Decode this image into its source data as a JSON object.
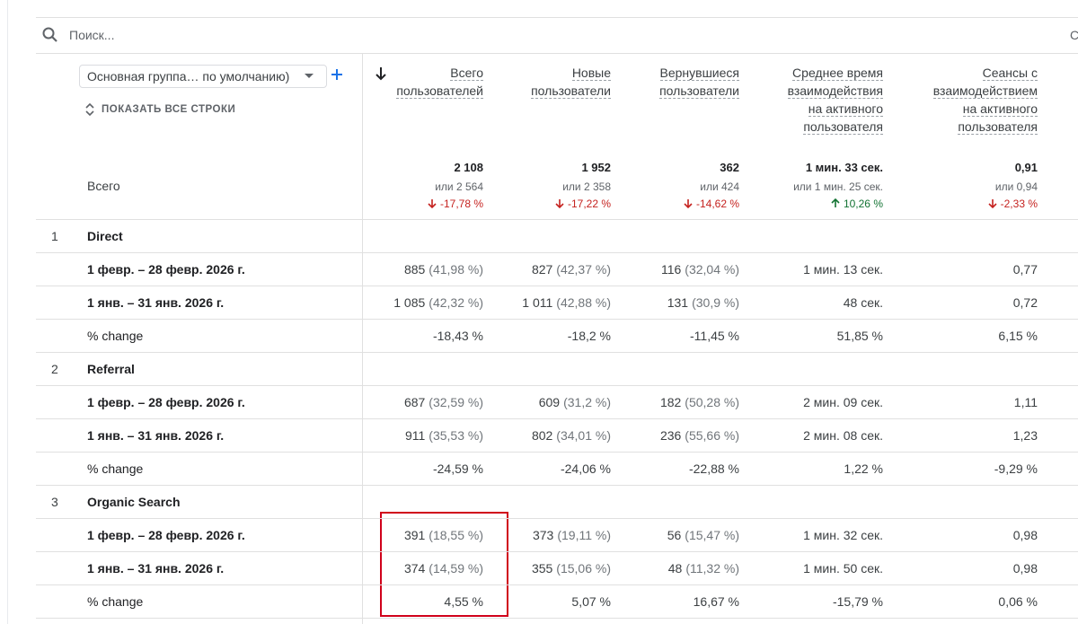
{
  "search": {
    "placeholder": "Поиск...",
    "right_text": "С"
  },
  "dimension_select": "Основная группа… по умолчанию)",
  "show_all_rows": "ПОКАЗАТЬ ВСЕ СТРОКИ",
  "columns": [
    "Всего пользователей",
    "Новые пользователи",
    "Вернувшиеся пользователи",
    "Среднее время взаимодействия на активного пользователя",
    "Сеансы с взаимодействием на активного пользователя"
  ],
  "totals": {
    "label": "Всего",
    "cells": [
      {
        "value": "2 108",
        "compare": "или 2 564",
        "change": "-17,78 %",
        "direction": "down"
      },
      {
        "value": "1 952",
        "compare": "или 2 358",
        "change": "-17,22 %",
        "direction": "down"
      },
      {
        "value": "362",
        "compare": "или 424",
        "change": "-14,62 %",
        "direction": "down"
      },
      {
        "value": "1 мин. 33 сек.",
        "compare": "или 1 мин. 25 сек.",
        "change": "10,26 %",
        "direction": "up"
      },
      {
        "value": "0,91",
        "compare": "или 0,94",
        "change": "-2,33 %",
        "direction": "down"
      }
    ]
  },
  "groups": [
    {
      "index": "1",
      "name": "Direct",
      "rows": [
        {
          "label": "1 февр. – 28 февр. 2026 г.",
          "cells": [
            {
              "value": "885",
              "share": "(41,98 %)"
            },
            {
              "value": "827",
              "share": "(42,37 %)"
            },
            {
              "value": "116",
              "share": "(32,04 %)"
            },
            {
              "value": "1 мин. 13 сек."
            },
            {
              "value": "0,77"
            }
          ]
        },
        {
          "label": "1 янв. – 31 янв. 2026 г.",
          "cells": [
            {
              "value": "1 085",
              "share": "(42,32 %)"
            },
            {
              "value": "1 011",
              "share": "(42,88 %)"
            },
            {
              "value": "131",
              "share": "(30,9 %)"
            },
            {
              "value": "48 сек."
            },
            {
              "value": "0,72"
            }
          ]
        },
        {
          "label": "% change",
          "cells": [
            {
              "value": "-18,43 %"
            },
            {
              "value": "-18,2 %"
            },
            {
              "value": "-11,45 %"
            },
            {
              "value": "51,85 %"
            },
            {
              "value": "6,15 %"
            }
          ]
        }
      ]
    },
    {
      "index": "2",
      "name": "Referral",
      "rows": [
        {
          "label": "1 февр. – 28 февр. 2026 г.",
          "cells": [
            {
              "value": "687",
              "share": "(32,59 %)"
            },
            {
              "value": "609",
              "share": "(31,2 %)"
            },
            {
              "value": "182",
              "share": "(50,28 %)"
            },
            {
              "value": "2 мин. 09 сек."
            },
            {
              "value": "1,11"
            }
          ]
        },
        {
          "label": "1 янв. – 31 янв. 2026 г.",
          "cells": [
            {
              "value": "911",
              "share": "(35,53 %)"
            },
            {
              "value": "802",
              "share": "(34,01 %)"
            },
            {
              "value": "236",
              "share": "(55,66 %)"
            },
            {
              "value": "2 мин. 08 сек."
            },
            {
              "value": "1,23"
            }
          ]
        },
        {
          "label": "% change",
          "cells": [
            {
              "value": "-24,59 %"
            },
            {
              "value": "-24,06 %"
            },
            {
              "value": "-22,88 %"
            },
            {
              "value": "1,22 %"
            },
            {
              "value": "-9,29 %"
            }
          ]
        }
      ]
    },
    {
      "index": "3",
      "name": "Organic Search",
      "rows": [
        {
          "label": "1 февр. – 28 февр. 2026 г.",
          "cells": [
            {
              "value": "391",
              "share": "(18,55 %)"
            },
            {
              "value": "373",
              "share": "(19,11 %)"
            },
            {
              "value": "56",
              "share": "(15,47 %)"
            },
            {
              "value": "1 мин. 32 сек."
            },
            {
              "value": "0,98"
            }
          ]
        },
        {
          "label": "1 янв. – 31 янв. 2026 г.",
          "cells": [
            {
              "value": "374",
              "share": "(14,59 %)"
            },
            {
              "value": "355",
              "share": "(15,06 %)"
            },
            {
              "value": "48",
              "share": "(11,32 %)"
            },
            {
              "value": "1 мин. 50 сек."
            },
            {
              "value": "0,98"
            }
          ]
        },
        {
          "label": "% change",
          "cells": [
            {
              "value": "4,55 %"
            },
            {
              "value": "5,07 %"
            },
            {
              "value": "16,67 %"
            },
            {
              "value": "-15,79 %"
            },
            {
              "value": "0,06 %"
            }
          ]
        }
      ]
    }
  ]
}
